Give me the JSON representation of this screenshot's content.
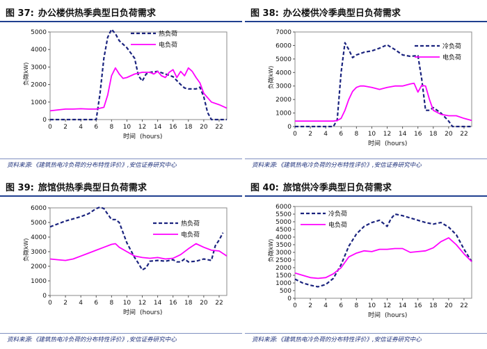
{
  "chart_data": [
    {
      "type": "line",
      "figure_label": "图 37:",
      "title": "办公楼供热季典型日负荷需求",
      "xlabel": "时间",
      "xunit": "(hours)",
      "ylabel": "负荷",
      "yunit": "(kW)",
      "ylim": [
        0,
        5000
      ],
      "yticks": [
        0,
        1000,
        2000,
        3000,
        4000,
        5000
      ],
      "xlim": [
        0,
        23
      ],
      "xticks": [
        0,
        2,
        4,
        6,
        8,
        10,
        12,
        14,
        16,
        18,
        20,
        22
      ],
      "legend_position": "top-right",
      "series": [
        {
          "name": "热负荷",
          "style": "dashed",
          "color": "#1a237e",
          "x": [
            0,
            1,
            2,
            3,
            4,
            5,
            6,
            6.5,
            7,
            7.5,
            8,
            8.5,
            9,
            10,
            11,
            11.5,
            12,
            12.5,
            13,
            14,
            15,
            16,
            17,
            17.5,
            18,
            19,
            19.5,
            20,
            20.5,
            21,
            22,
            23
          ],
          "y": [
            0,
            0,
            0,
            0,
            0,
            0,
            0,
            1500,
            3500,
            4700,
            5150,
            4900,
            4500,
            4100,
            3500,
            2500,
            2200,
            2600,
            2700,
            2750,
            2600,
            2450,
            2000,
            1800,
            1750,
            1750,
            1850,
            1300,
            400,
            0,
            0,
            0
          ]
        },
        {
          "name": "电负荷",
          "style": "solid",
          "color": "#ff00ff",
          "x": [
            0,
            1,
            2,
            3,
            4,
            5,
            6,
            7,
            7.5,
            8,
            8.5,
            9,
            9.5,
            10,
            11,
            12,
            13,
            13.5,
            14,
            14.5,
            15,
            15.5,
            16,
            16.5,
            17,
            17.5,
            18,
            18.5,
            19,
            19.5,
            20,
            21,
            22,
            23
          ],
          "y": [
            500,
            550,
            600,
            600,
            620,
            600,
            600,
            700,
            1400,
            2500,
            2950,
            2600,
            2350,
            2400,
            2600,
            2700,
            2700,
            2600,
            2750,
            2500,
            2400,
            2700,
            2850,
            2400,
            2750,
            2500,
            2950,
            2750,
            2400,
            2100,
            1500,
            1000,
            850,
            650
          ]
        }
      ],
      "source": "资料来源:《建筑热电冷负荷的分布特性评价》,安信证券研究中心"
    },
    {
      "type": "line",
      "figure_label": "图 38:",
      "title": "办公楼供冷季典型日负荷需求",
      "xlabel": "时间",
      "xunit": "(hours)",
      "ylabel": "负荷",
      "yunit": "(kW)",
      "ylim": [
        0,
        7000
      ],
      "yticks": [
        0,
        1000,
        2000,
        3000,
        4000,
        5000,
        6000,
        7000
      ],
      "xlim": [
        0,
        23
      ],
      "xticks": [
        0,
        2,
        4,
        6,
        8,
        10,
        12,
        14,
        16,
        18,
        20,
        22
      ],
      "legend_position": "top-right",
      "series": [
        {
          "name": "冷负荷",
          "style": "dashed",
          "color": "#1a237e",
          "x": [
            0,
            1,
            2,
            3,
            4,
            5,
            5.5,
            6,
            6.5,
            7,
            7.5,
            8,
            8.5,
            9,
            10,
            11,
            12,
            13,
            14,
            15,
            16,
            16.5,
            17,
            17.5,
            18,
            18.5,
            19,
            20,
            20.5,
            21,
            22,
            23
          ],
          "y": [
            0,
            0,
            0,
            0,
            0,
            0,
            500,
            4000,
            6200,
            5700,
            5100,
            5300,
            5400,
            5500,
            5600,
            5800,
            6050,
            5700,
            5300,
            5200,
            5250,
            3500,
            1200,
            1200,
            1400,
            1200,
            1000,
            400,
            0,
            0,
            0,
            0
          ]
        },
        {
          "name": "电负荷",
          "style": "solid",
          "color": "#ff00ff",
          "x": [
            0,
            1,
            2,
            3,
            4,
            5,
            5.5,
            6,
            6.5,
            7,
            7.5,
            8,
            8.5,
            9,
            10,
            11,
            12,
            13,
            14,
            15,
            15.5,
            16,
            16.5,
            17,
            17.5,
            18,
            19,
            20,
            21,
            22,
            23
          ],
          "y": [
            400,
            400,
            400,
            400,
            400,
            400,
            450,
            600,
            1200,
            2000,
            2600,
            2900,
            3000,
            3000,
            2900,
            2750,
            2900,
            3000,
            3000,
            3150,
            3200,
            2550,
            3050,
            3000,
            2000,
            1200,
            900,
            800,
            800,
            600,
            450
          ]
        }
      ],
      "source": "资料来源:《建筑热电冷负荷的分布特性评价》,安信证券研究中心"
    },
    {
      "type": "line",
      "figure_label": "图 39:",
      "title": "旅馆供热季典型日负荷需求",
      "xlabel": "时间",
      "xunit": "(hours)",
      "ylabel": "负荷",
      "yunit": "(kW)",
      "ylim": [
        0,
        6000
      ],
      "yticks": [
        0,
        1000,
        2000,
        3000,
        4000,
        5000,
        6000
      ],
      "xlim": [
        0,
        23
      ],
      "xticks": [
        0,
        2,
        4,
        6,
        8,
        10,
        12,
        14,
        16,
        18,
        20,
        22
      ],
      "legend_position": "top-right",
      "series": [
        {
          "name": "热负荷",
          "style": "dashed",
          "color": "#1a237e",
          "x": [
            0,
            1,
            2,
            3,
            4,
            5,
            6,
            6.5,
            7,
            8,
            8.5,
            9,
            10,
            11,
            11.5,
            12,
            12.5,
            13,
            14,
            15,
            16,
            16.5,
            17,
            17.5,
            18,
            19,
            20,
            21,
            21.5,
            22,
            22.5
          ],
          "y": [
            4700,
            4900,
            5100,
            5250,
            5400,
            5600,
            5950,
            6050,
            5950,
            5200,
            5200,
            5000,
            3600,
            2600,
            2200,
            1750,
            1900,
            2350,
            2400,
            2350,
            2450,
            2300,
            2300,
            2500,
            2300,
            2350,
            2500,
            2400,
            3400,
            3800,
            4300
          ]
        },
        {
          "name": "电负荷",
          "style": "solid",
          "color": "#ff00ff",
          "x": [
            0,
            1,
            2,
            3,
            4,
            5,
            6,
            7,
            8,
            8.5,
            9,
            10,
            11,
            12,
            13,
            14,
            15,
            16,
            17,
            18,
            19,
            20,
            21,
            22,
            23
          ],
          "y": [
            2500,
            2450,
            2400,
            2500,
            2700,
            2900,
            3100,
            3300,
            3500,
            3550,
            3300,
            3000,
            2700,
            2600,
            2550,
            2600,
            2500,
            2550,
            2800,
            3200,
            3550,
            3300,
            3100,
            3050,
            2700
          ]
        }
      ],
      "source": "资料来源:《建筑热电冷负荷的分布特性评价》,安信证券研究中心"
    },
    {
      "type": "line",
      "figure_label": "图 40:",
      "title": "旅馆供冷季典型日负荷需求",
      "xlabel": "时间",
      "xunit": "(hours)",
      "ylabel": "负荷",
      "yunit": "(kW)",
      "ylim": [
        0,
        6000
      ],
      "yticks": [
        0,
        500,
        1000,
        1500,
        2000,
        2500,
        3000,
        3500,
        4000,
        4500,
        5000,
        5500,
        6000
      ],
      "xlim": [
        0,
        23
      ],
      "xticks": [
        0,
        2,
        4,
        6,
        8,
        10,
        12,
        14,
        16,
        18,
        20,
        22
      ],
      "legend_position": "top-center",
      "series": [
        {
          "name": "冷负荷",
          "style": "dashed",
          "color": "#1a237e",
          "x": [
            0,
            1,
            2,
            3,
            4,
            5,
            6,
            7,
            8,
            9,
            10,
            11,
            11.5,
            12,
            12.5,
            13,
            13.5,
            14,
            15,
            16,
            17,
            18,
            19,
            20,
            21,
            22,
            23
          ],
          "y": [
            1250,
            1000,
            850,
            750,
            900,
            1300,
            2200,
            3400,
            4200,
            4700,
            4950,
            5100,
            4900,
            4700,
            5200,
            5500,
            5450,
            5400,
            5250,
            5100,
            4950,
            4850,
            4950,
            4650,
            4150,
            3200,
            2400
          ]
        },
        {
          "name": "电负荷",
          "style": "solid",
          "color": "#ff00ff",
          "x": [
            0,
            1,
            2,
            3,
            4,
            5,
            6,
            7,
            8,
            9,
            10,
            11,
            12,
            13,
            14,
            15,
            16,
            17,
            18,
            19,
            20,
            21,
            22,
            23
          ],
          "y": [
            1650,
            1500,
            1350,
            1300,
            1350,
            1600,
            2000,
            2700,
            2950,
            3100,
            3050,
            3200,
            3200,
            3250,
            3250,
            3000,
            3050,
            3100,
            3300,
            3700,
            3950,
            3500,
            2900,
            2400
          ]
        }
      ],
      "source": "资料来源:《建筑热电冷负荷的分布特性评价》,安信证券研究中心"
    }
  ]
}
